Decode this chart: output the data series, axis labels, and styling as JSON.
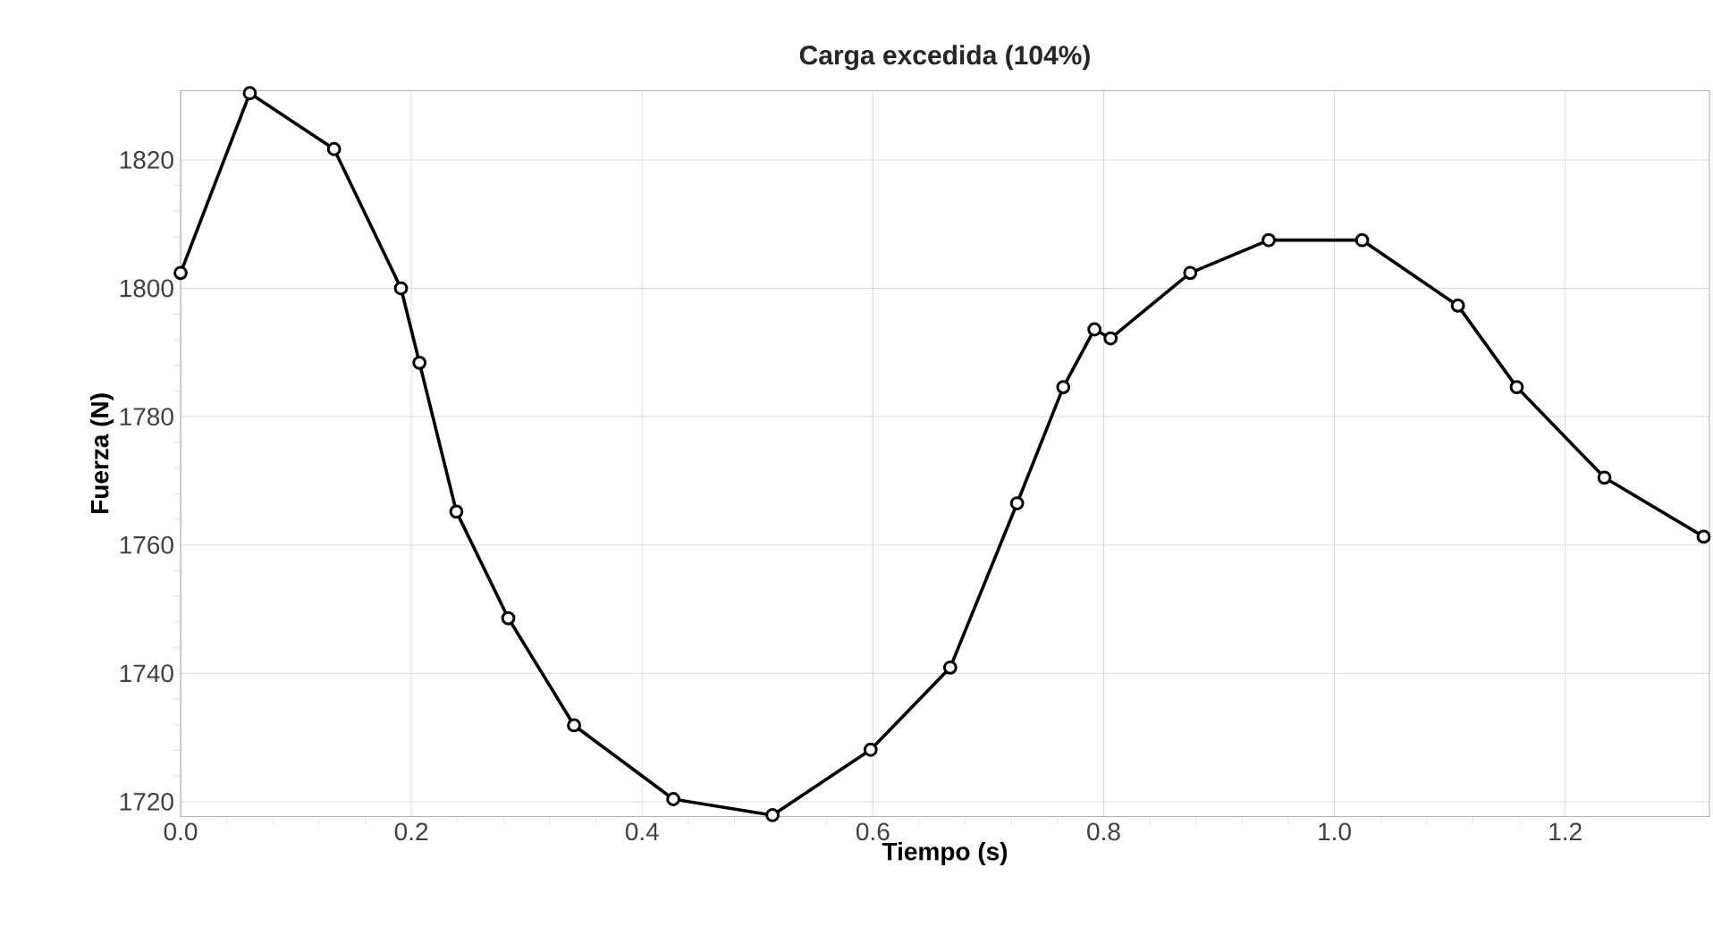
{
  "chart_data": {
    "type": "line",
    "title": "Carga excedida (104%)",
    "xlabel": "Tiempo (s)",
    "ylabel": "Fuerza (N)",
    "x": [
      0,
      0.06,
      0.133,
      0.191,
      0.207,
      0.239,
      0.284,
      0.341,
      0.427,
      0.513,
      0.598,
      0.667,
      0.725,
      0.765,
      0.792,
      0.806,
      0.875,
      0.943,
      1.024,
      1.107,
      1.158,
      1.234,
      1.32
    ],
    "values": [
      1802.4,
      1830.4,
      1821.7,
      1800,
      1788.4,
      1765.2,
      1748.6,
      1731.9,
      1720.4,
      1717.9,
      1728.1,
      1740.9,
      1766.5,
      1784.6,
      1793.6,
      1792.2,
      1802.4,
      1807.5,
      1807.5,
      1797.3,
      1784.6,
      1770.5,
      1761.3
    ],
    "color": "#000000",
    "marker": "circle",
    "line_style": "solid",
    "grid": true,
    "xlim": [
      0,
      1.325
    ],
    "ylim": [
      1717.7,
      1830.8
    ],
    "xticks": [
      {
        "value": 0,
        "label": "0.0"
      },
      0.2,
      0.4,
      0.6,
      0.8,
      {
        "value": 1,
        "label": "1.0"
      },
      1.2
    ],
    "yticks": [
      1720,
      1740,
      1760,
      1780,
      1800,
      1820
    ]
  }
}
